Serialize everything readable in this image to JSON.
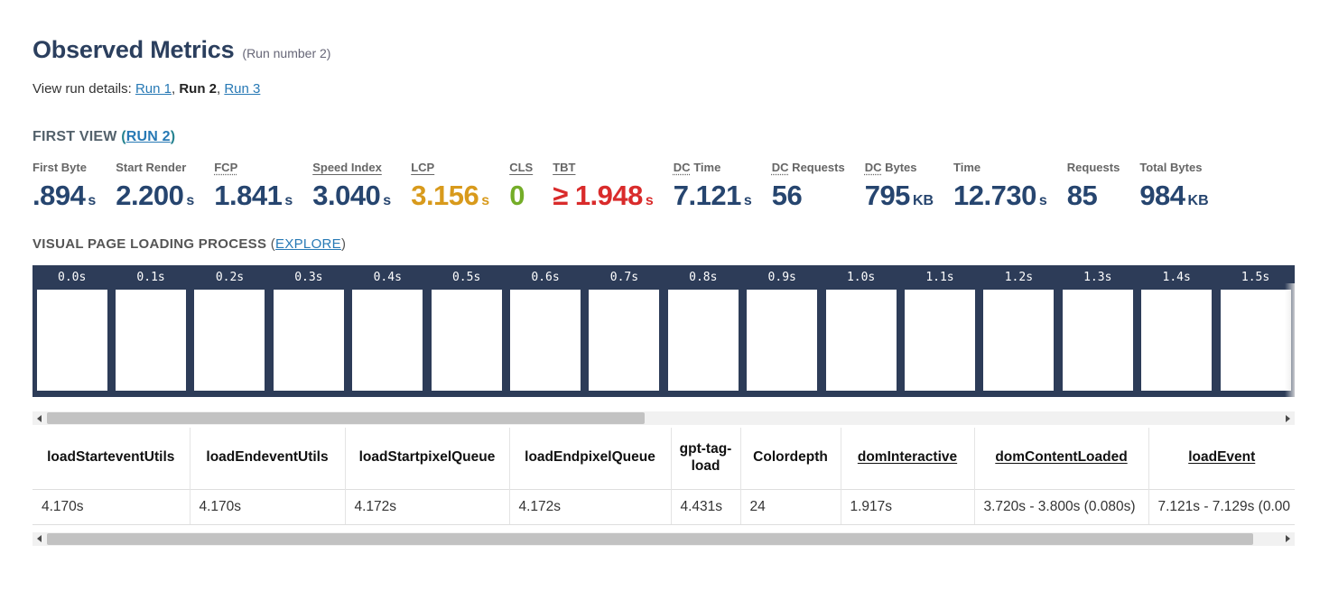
{
  "header": {
    "title": "Observed Metrics",
    "run_note": "(Run number 2)",
    "view_run_details_label": "View run details: ",
    "separator": ", ",
    "runs": [
      {
        "label": "Run 1",
        "current": false
      },
      {
        "label": "Run 2",
        "current": true
      },
      {
        "label": "Run 3",
        "current": false
      }
    ]
  },
  "first_view": {
    "label": "FIRST VIEW ",
    "open_paren": "(",
    "run_link": "RUN 2",
    "close_paren": ")"
  },
  "metrics": [
    {
      "label": "First Byte",
      "value": ".894",
      "unit": "s",
      "color": "navy",
      "underline": "none"
    },
    {
      "label": "Start Render",
      "value": "2.200",
      "unit": "s",
      "color": "navy",
      "underline": "none"
    },
    {
      "label": "FCP",
      "value": "1.841",
      "unit": "s",
      "color": "navy",
      "underline": "dotted"
    },
    {
      "label": "Speed Index",
      "value": "3.040",
      "unit": "s",
      "color": "navy",
      "underline": "solid"
    },
    {
      "label": "LCP",
      "value": "3.156",
      "unit": "s",
      "color": "orange",
      "underline": "solid"
    },
    {
      "label": "CLS",
      "value": "0",
      "unit": "",
      "color": "green",
      "underline": "solid"
    },
    {
      "label": "TBT",
      "value": "≥ 1.948",
      "unit": "s",
      "color": "red",
      "underline": "solid"
    },
    {
      "abbr": "DC",
      "label_rest": " Time",
      "label": "DC Time",
      "value": "7.121",
      "unit": "s",
      "color": "navy",
      "underline": "none"
    },
    {
      "abbr": "DC",
      "label_rest": " Requests",
      "label": "DC Requests",
      "value": "56",
      "unit": "",
      "color": "navy",
      "underline": "none"
    },
    {
      "abbr": "DC",
      "label_rest": " Bytes",
      "label": "DC Bytes",
      "value": "795",
      "unit": "KB",
      "color": "navy",
      "underline": "none"
    },
    {
      "label": "Time",
      "value": "12.730",
      "unit": "s",
      "color": "navy",
      "underline": "none"
    },
    {
      "label": "Requests",
      "value": "85",
      "unit": "",
      "color": "navy",
      "underline": "none"
    },
    {
      "label": "Total Bytes",
      "value": "984",
      "unit": "KB",
      "color": "navy",
      "underline": "none"
    }
  ],
  "visual_loading": {
    "label": "VISUAL PAGE LOADING PROCESS ",
    "open_paren": "(",
    "explore_link": "EXPLORE",
    "close_paren": ")"
  },
  "filmstrip": {
    "timestamps": [
      "0.0s",
      "0.1s",
      "0.2s",
      "0.3s",
      "0.4s",
      "0.5s",
      "0.6s",
      "0.7s",
      "0.8s",
      "0.9s",
      "1.0s",
      "1.1s",
      "1.2s",
      "1.3s",
      "1.4s",
      "1.5s"
    ]
  },
  "table": {
    "columns": [
      {
        "label": "loadStarteventUtils",
        "underline": false
      },
      {
        "label": "loadEndeventUtils",
        "underline": false
      },
      {
        "label": "loadStartpixelQueue",
        "underline": false
      },
      {
        "label": "loadEndpixelQueue",
        "underline": false
      },
      {
        "label": "gpt-tag-load",
        "underline": false
      },
      {
        "label": "Colordepth",
        "underline": false
      },
      {
        "label": "domInteractive",
        "underline": true
      },
      {
        "label": "domContentLoaded",
        "underline": true
      },
      {
        "label": "loadEvent",
        "underline": true
      }
    ],
    "row": [
      "4.170s",
      "4.170s",
      "4.172s",
      "4.172s",
      "4.431s",
      "24",
      "1.917s",
      "3.720s - 3.800s (0.080s)",
      "7.121s - 7.129s (0.00"
    ]
  },
  "colors": {
    "navy": "#26456f",
    "orange": "#d89a1c",
    "green": "#74ad28",
    "red": "#d92b2b",
    "link_blue": "#2779b5",
    "filmstrip_bg": "#2d3c58"
  }
}
